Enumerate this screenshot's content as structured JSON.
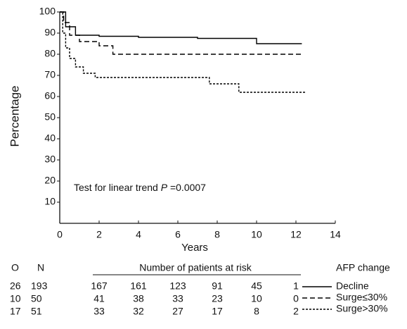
{
  "chart_data": {
    "type": "line",
    "step": true,
    "xlabel": "Years",
    "ylabel": "Percentage",
    "xlim": [
      0,
      14
    ],
    "xticks": [
      0,
      2,
      4,
      6,
      8,
      10,
      12,
      14
    ],
    "ylim": [
      0,
      100
    ],
    "yticks": [
      10,
      20,
      30,
      40,
      50,
      60,
      70,
      80,
      90,
      100
    ],
    "annotation": {
      "text": "Test for linear trend",
      "stat": "P",
      "value": "=0.0007"
    },
    "legend_title": "AFP change",
    "series": [
      {
        "name": "Decline",
        "color": "#000000",
        "style": "solid",
        "x": [
          0,
          0.3,
          0.3,
          0.8,
          0.8,
          2,
          2,
          4,
          4,
          7,
          7,
          10,
          10,
          12.3
        ],
        "values": [
          100,
          100,
          93,
          93,
          89,
          89,
          88.5,
          88.5,
          88,
          88,
          87.5,
          87.5,
          85,
          85
        ]
      },
      {
        "name": "Surge≤30%",
        "color": "#000000",
        "style": "dashed",
        "x": [
          0,
          0.2,
          0.2,
          0.5,
          0.5,
          1,
          1,
          2,
          2,
          2.7,
          2.7,
          12.3
        ],
        "values": [
          100,
          100,
          95,
          95,
          89,
          89,
          86,
          86,
          84,
          84,
          80,
          80
        ]
      },
      {
        "name": "Surge>30%",
        "color": "#000000",
        "style": "dotted",
        "x": [
          0,
          0.15,
          0.15,
          0.3,
          0.3,
          0.5,
          0.5,
          0.8,
          0.8,
          1.2,
          1.2,
          1.8,
          1.8,
          7.6,
          7.6,
          9.1,
          9.1,
          12.5
        ],
        "values": [
          100,
          100,
          90,
          90,
          83,
          83,
          78,
          78,
          74,
          74,
          71,
          71,
          69,
          69,
          66,
          66,
          62,
          62
        ]
      }
    ],
    "risk_table": {
      "columns": [
        "O",
        "N"
      ],
      "title": "Number of patients at risk",
      "x": [
        2,
        4,
        6,
        8,
        10,
        12
      ],
      "rows": [
        {
          "O": 26,
          "N": 193,
          "at_risk": [
            167,
            161,
            123,
            91,
            45,
            1
          ]
        },
        {
          "O": 10,
          "N": 50,
          "at_risk": [
            41,
            38,
            33,
            23,
            10,
            0
          ]
        },
        {
          "O": 17,
          "N": 51,
          "at_risk": [
            33,
            32,
            27,
            17,
            8,
            2
          ]
        }
      ]
    }
  }
}
